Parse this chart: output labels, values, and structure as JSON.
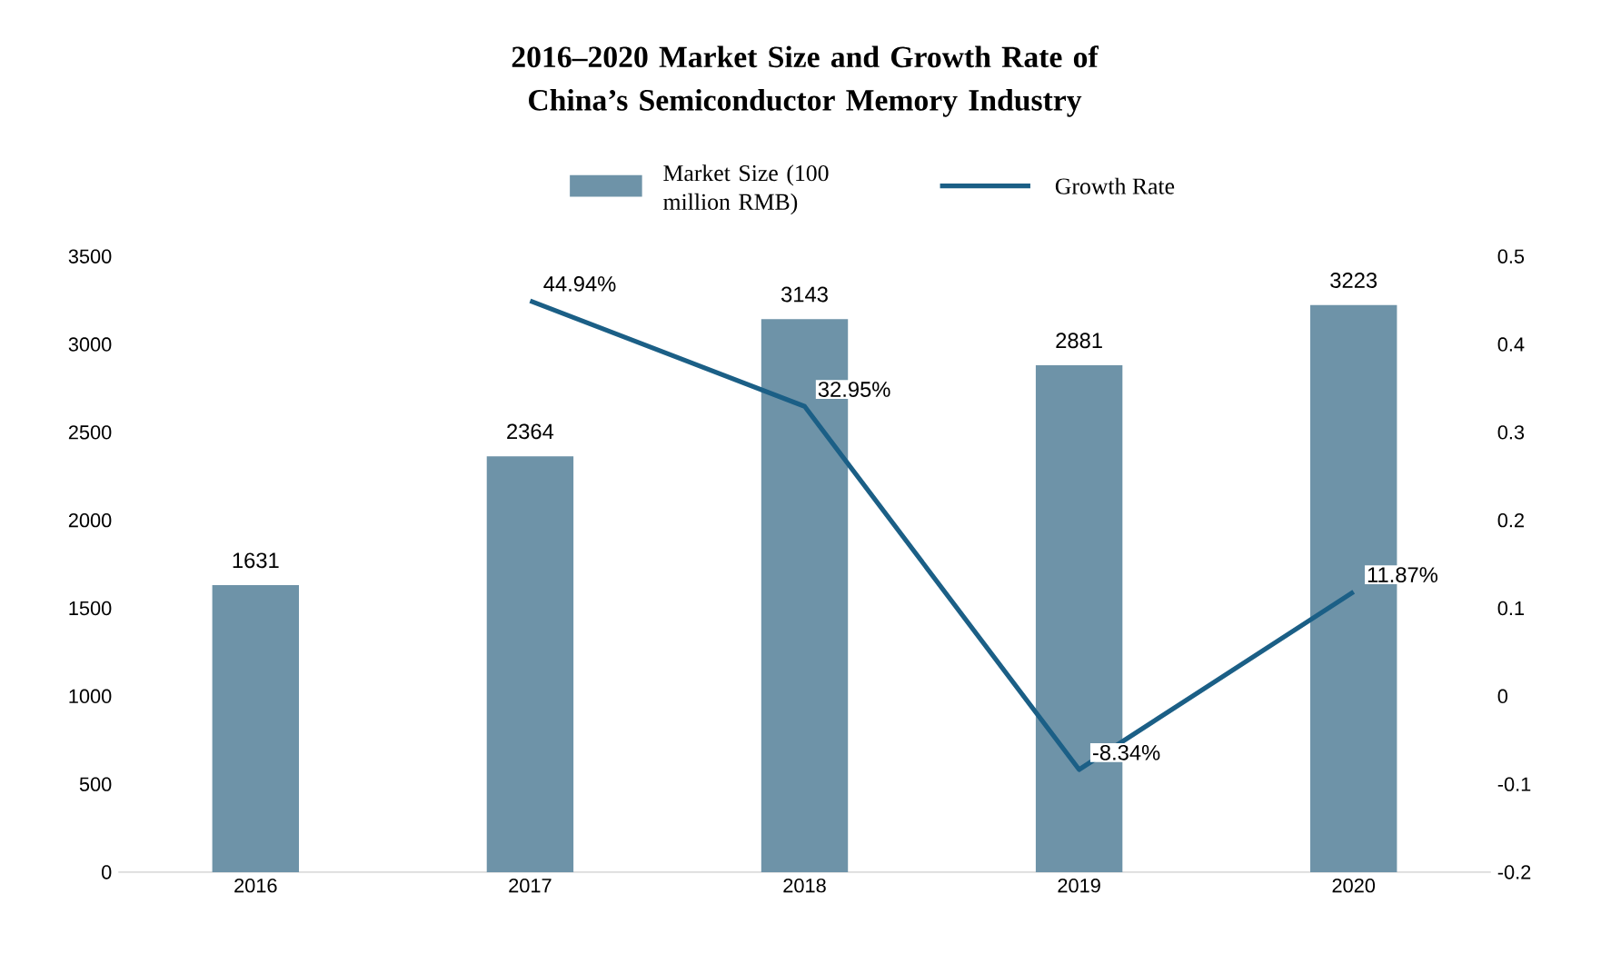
{
  "chart_data": {
    "type": "bar",
    "title": "2016–2020 Market Size and Growth Rate of China’s Semiconductor Memory Industry",
    "categories": [
      "2016",
      "2017",
      "2018",
      "2019",
      "2020"
    ],
    "series": [
      {
        "name": "Market Size (100 million RMB)",
        "color": "#6e93a8",
        "values": [
          1631,
          2364,
          3143,
          2881,
          3223
        ],
        "value_labels": [
          "1631",
          "2364",
          "3143",
          "2881",
          "3223"
        ]
      },
      {
        "name": "Growth Rate",
        "type": "line",
        "axis": "y2",
        "color": "#1b5f86",
        "values": [
          null,
          0.4494,
          0.3295,
          -0.0834,
          0.1187
        ],
        "value_labels": [
          null,
          "44.94%",
          "32.95%",
          "-8.34%",
          "11.87%"
        ]
      }
    ],
    "ylim": [
      0,
      3500
    ],
    "yticks": [
      0,
      500,
      1000,
      1500,
      2000,
      2500,
      3000,
      3500
    ],
    "y2lim": [
      -0.2,
      0.5
    ],
    "y2ticks": [
      -0.2,
      -0.1,
      0,
      0.1,
      0.2,
      0.3,
      0.4,
      0.5
    ],
    "legend": "top",
    "grid": false,
    "marker": "none",
    "line_style": "solid"
  }
}
